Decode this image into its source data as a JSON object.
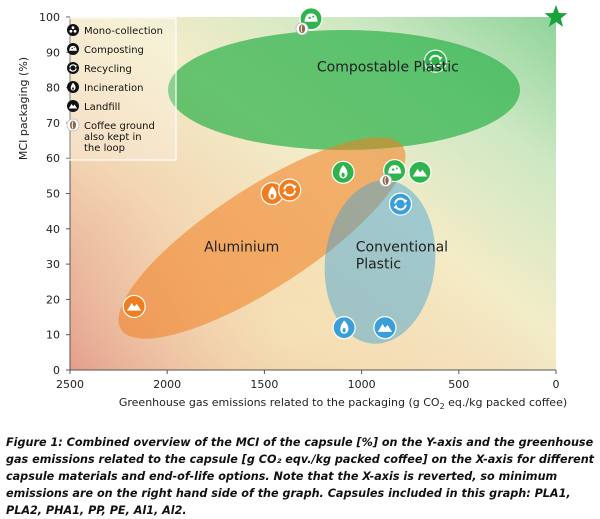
{
  "chart_data": {
    "type": "scatter",
    "xlabel_prefix": "Greenhouse gas emissions related to the packaging (g CO",
    "xlabel_sub": "2",
    "xlabel_suffix": " eq./kg packed coffee)",
    "ylabel": "MCI packaging (%)",
    "xlim": [
      2500,
      0
    ],
    "ylim": [
      0,
      100
    ],
    "x_reversed": true,
    "x_ticks": [
      2500,
      2000,
      1500,
      1000,
      500,
      0
    ],
    "y_ticks": [
      0,
      10,
      20,
      30,
      40,
      50,
      60,
      70,
      80,
      90,
      100
    ],
    "grid": false,
    "legend_position": "top-left",
    "legend": [
      {
        "key": "mono",
        "label": "Mono-collection",
        "icon": "mono-collection-icon"
      },
      {
        "key": "compost",
        "label": "Composting",
        "icon": "composting-icon"
      },
      {
        "key": "recycle",
        "label": "Recycling",
        "icon": "recycling-icon"
      },
      {
        "key": "incin",
        "label": "Incineration",
        "icon": "incineration-icon"
      },
      {
        "key": "landfill",
        "label": "Landfill",
        "icon": "landfill-icon"
      },
      {
        "key": "coffee",
        "label": "Coffee ground also kept in the loop",
        "label_lines": [
          "Coffee ground",
          "also kept in",
          "the loop"
        ],
        "icon": "coffee-bean-icon"
      }
    ],
    "groups": [
      {
        "name": "Compostable Plastic",
        "color": "#2fb34c",
        "label_x": 1230,
        "label_y": 84.5
      },
      {
        "name": "Aluminium",
        "color": "#f07d1f",
        "label_x": 1810,
        "label_y": 33.5
      },
      {
        "name": "Conventional Plastic",
        "name_lines": [
          "Conventional",
          "Plastic"
        ],
        "color": "#3a9fd8",
        "label_x": 1030,
        "label_y": 33.5
      }
    ],
    "points": [
      {
        "group": "Compostable Plastic",
        "end_of_life": "compost",
        "x": 1260,
        "y": 99.5,
        "coffee": true
      },
      {
        "group": "Compostable Plastic",
        "end_of_life": "recycle",
        "x": 620,
        "y": 87.5
      },
      {
        "group": "Compostable Plastic",
        "end_of_life": "incin",
        "x": 1095,
        "y": 56
      },
      {
        "group": "Compostable Plastic",
        "end_of_life": "compost",
        "x": 830,
        "y": 56.5,
        "coffee": true
      },
      {
        "group": "Compostable Plastic",
        "end_of_life": "landfill",
        "x": 700,
        "y": 56
      },
      {
        "group": "Aluminium",
        "end_of_life": "incin",
        "x": 1460,
        "y": 50
      },
      {
        "group": "Aluminium",
        "end_of_life": "recycle",
        "x": 1370,
        "y": 51
      },
      {
        "group": "Aluminium",
        "end_of_life": "landfill",
        "x": 2170,
        "y": 18
      },
      {
        "group": "Conventional Plastic",
        "end_of_life": "recycle",
        "x": 800,
        "y": 47
      },
      {
        "group": "Conventional Plastic",
        "end_of_life": "incin",
        "x": 1090,
        "y": 12
      },
      {
        "group": "Conventional Plastic",
        "end_of_life": "landfill",
        "x": 880,
        "y": 12
      }
    ],
    "ideal_marker": {
      "x": 0,
      "y": 100,
      "icon": "star-icon",
      "color": "#1aa33a"
    }
  },
  "caption": "Figure 1: Combined overview of the MCI of the capsule [%] on the Y-axis and the greenhouse gas emissions related to the capsule [g CO₂ eqv./kg packed coffee] on the X-axis for different capsule materials and end-of-life options. Note that the X-axis is reverted, so minimum emissions are on the right hand side of the graph. Capsules included in this graph: PLA1, PLA2, PHA1, PP, PE, Al1, Al2."
}
